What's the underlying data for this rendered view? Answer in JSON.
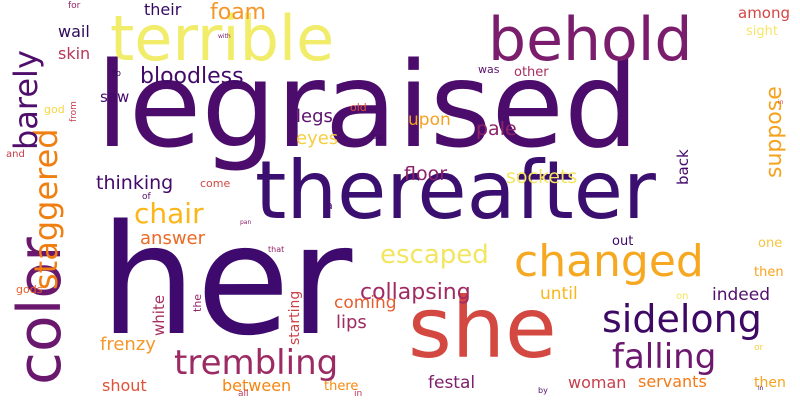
{
  "words": [
    {
      "text": "her",
      "color": "#3e0a6e"
    },
    {
      "text": "legraised",
      "color": "#4b0c6b"
    },
    {
      "text": "thereafter",
      "color": "#3b0f6f"
    },
    {
      "text": "she",
      "color": "#d44842"
    },
    {
      "text": "terrible",
      "color": "#f1ec6a"
    },
    {
      "text": "behold",
      "color": "#7a1d6d"
    },
    {
      "text": "changed",
      "color": "#f6a820"
    },
    {
      "text": "color",
      "color": "#6a176e"
    },
    {
      "text": "sidelong",
      "color": "#3d0965"
    },
    {
      "text": "falling",
      "color": "#6d186e"
    },
    {
      "text": "trembling",
      "color": "#9c2b63"
    },
    {
      "text": "staggered",
      "color": "#f07f11"
    },
    {
      "text": "chair",
      "color": "#fbb61a"
    },
    {
      "text": "barely",
      "color": "#4f0d6c"
    },
    {
      "text": "escaped",
      "color": "#f2e661"
    },
    {
      "text": "suppose",
      "color": "#f4a31f"
    },
    {
      "text": "bloodless",
      "color": "#420a68"
    },
    {
      "text": "foam",
      "color": "#f5962a"
    },
    {
      "text": "collapsing",
      "color": "#a02a63"
    },
    {
      "text": "frenzy",
      "color": "#f5972a"
    },
    {
      "text": "floor",
      "color": "#8b226a"
    },
    {
      "text": "sockets",
      "color": "#f3e55d"
    },
    {
      "text": "thinking",
      "color": "#45096a"
    },
    {
      "text": "pale",
      "color": "#8e2468"
    },
    {
      "text": "legs",
      "color": "#5c126e"
    },
    {
      "text": "eyes",
      "color": "#f6cd3f"
    },
    {
      "text": "answer",
      "color": "#ed6925"
    },
    {
      "text": "lips",
      "color": "#9c2a63"
    },
    {
      "text": "until",
      "color": "#fbb61a"
    },
    {
      "text": "indeed",
      "color": "#520e6d"
    },
    {
      "text": "coming",
      "color": "#e65d2f"
    },
    {
      "text": "festal",
      "color": "#7e1e6c"
    },
    {
      "text": "between",
      "color": "#f8850f"
    },
    {
      "text": "shout",
      "color": "#df5238"
    },
    {
      "text": "upon",
      "color": "#f4a11f"
    },
    {
      "text": "woman",
      "color": "#c73e4c"
    },
    {
      "text": "servants",
      "color": "#f47a16"
    },
    {
      "text": "among",
      "color": "#d24644"
    },
    {
      "text": "their",
      "color": "#360961"
    },
    {
      "text": "wail",
      "color": "#2d0b59"
    },
    {
      "text": "skin",
      "color": "#b73759"
    },
    {
      "text": "saw",
      "color": "#45096a"
    },
    {
      "text": "back",
      "color": "#45096a"
    },
    {
      "text": "white",
      "color": "#a82f5d"
    },
    {
      "text": "then",
      "color": "#f7a31e"
    },
    {
      "text": "starting",
      "color": "#cb4149"
    },
    {
      "text": "sight",
      "color": "#f8e46b"
    },
    {
      "text": "other",
      "color": "#a92e5e"
    },
    {
      "text": "out",
      "color": "#3e0966"
    },
    {
      "text": "one",
      "color": "#f5c542"
    },
    {
      "text": "gods",
      "color": "#e9612b"
    },
    {
      "text": "there",
      "color": "#f8890c"
    },
    {
      "text": "the",
      "color": "#96266a"
    },
    {
      "text": "god",
      "color": "#f5d741"
    },
    {
      "text": "had",
      "color": "#e75f2d"
    },
    {
      "text": "was",
      "color": "#5a116e"
    },
    {
      "text": "and",
      "color": "#c63d4d"
    },
    {
      "text": "of",
      "color": "#5a116e"
    },
    {
      "text": "old",
      "color": "#df5238"
    },
    {
      "text": "for",
      "color": "#952567"
    },
    {
      "text": "to",
      "color": "#360961"
    },
    {
      "text": "on",
      "color": "#f3e55c"
    },
    {
      "text": "from",
      "color": "#c73e4c"
    },
    {
      "text": "come",
      "color": "#d24644"
    },
    {
      "text": "all",
      "color": "#b73759"
    },
    {
      "text": "that",
      "color": "#952567"
    },
    {
      "text": "the",
      "color": "#f1ed6c"
    },
    {
      "text": "in",
      "color": "#b73759"
    },
    {
      "text": "or",
      "color": "#f7d13c"
    },
    {
      "text": "by",
      "color": "#550f6d"
    },
    {
      "text": "with",
      "color": "#7a1d6d"
    },
    {
      "text": "but",
      "color": "#3d0965"
    },
    {
      "text": "pan",
      "color": "#8b226a"
    },
    {
      "text": "in",
      "color": "#3d0965"
    },
    {
      "text": "in",
      "color": "#d24644"
    }
  ]
}
